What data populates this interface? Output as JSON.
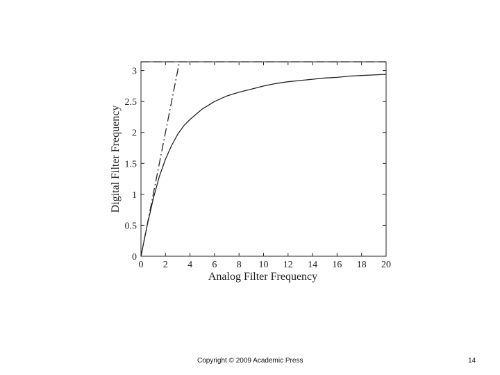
{
  "slide": {
    "copyright": "Copyright © 2009 Academic Press",
    "page_number": "14"
  },
  "chart_data": {
    "type": "line",
    "title": "",
    "xlabel": "Analog Filter Frequency",
    "ylabel": "Digital Filter Frequency",
    "xlim": [
      0,
      20
    ],
    "ylim": [
      0,
      3.14159
    ],
    "xticks": [
      0,
      2,
      4,
      6,
      8,
      10,
      12,
      14,
      16,
      18,
      20
    ],
    "yticks": [
      0,
      0.5,
      1,
      1.5,
      2,
      2.5,
      3
    ],
    "grid": false,
    "legend": "none",
    "series": [
      {
        "style": "solid",
        "x": [
          0,
          0.5,
          1,
          1.5,
          2,
          2.5,
          3,
          3.5,
          4,
          5,
          6,
          7,
          8,
          9,
          10,
          11,
          12,
          13,
          14,
          15,
          16,
          17,
          18,
          19,
          20
        ],
        "y": [
          0,
          0.49,
          0.93,
          1.29,
          1.57,
          1.79,
          1.97,
          2.11,
          2.21,
          2.38,
          2.5,
          2.59,
          2.65,
          2.7,
          2.75,
          2.79,
          2.82,
          2.84,
          2.86,
          2.88,
          2.89,
          2.91,
          2.92,
          2.93,
          2.94
        ]
      },
      {
        "style": "dashdot",
        "x": [
          0,
          3.14159
        ],
        "y": [
          0,
          3.14159
        ]
      },
      {
        "style": "dashed",
        "x": [
          0,
          20
        ],
        "y": [
          3.14159,
          3.14159
        ]
      }
    ]
  }
}
